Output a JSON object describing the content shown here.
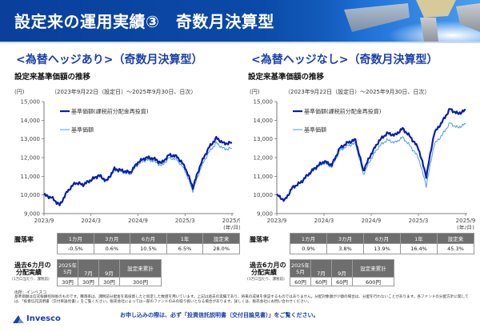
{
  "header": {
    "title": "設定来の運用実績③　奇数月決算型"
  },
  "panels": [
    {
      "title": "<為替ヘッジあり>（奇数月決算型）",
      "section_title": "設定来基準価額の推移",
      "unit": "(円)",
      "period": "（2023年9月22日（設定日）～2025年9月30日、日次）",
      "x_unit": "(年/月)",
      "legend": {
        "reinvested": "基準価額(課税前分配金再投資)",
        "nav": "基準価額"
      },
      "returns": {
        "label": "騰落率",
        "headers": [
          "1カ月",
          "3カ月",
          "6カ月",
          "1年",
          "設定来"
        ],
        "values": [
          "-0.5%",
          "0.6%",
          "10.5%",
          "6.5%",
          "28.0%"
        ]
      },
      "distributions": {
        "label_line1": "過去6カ月の",
        "label_line2": "分配実績",
        "sublabel": "(1万口当たり、課税前)",
        "headers": [
          "2025年\n5月",
          "7月",
          "9月",
          "設定来累計"
        ],
        "header_year": "2025年",
        "header_may": "5月",
        "values": [
          "30円",
          "30円",
          "30円",
          "300円"
        ]
      }
    },
    {
      "title": "<為替ヘッジなし>（奇数月決算型）",
      "section_title": "設定来基準価額の推移",
      "unit": "(円)",
      "period": "（2023年9月22日（設定日）～2025年9月30日、日次）",
      "x_unit": "(年/月)",
      "legend": {
        "reinvested": "基準価額(課税前分配金再投資)",
        "nav": "基準価額"
      },
      "returns": {
        "label": "騰落率",
        "headers": [
          "1カ月",
          "3カ月",
          "6カ月",
          "1年",
          "設定来"
        ],
        "values": [
          "0.9%",
          "3.8%",
          "13.9%",
          "16.4%",
          "45.3%"
        ]
      },
      "distributions": {
        "label_line1": "過去6カ月の",
        "label_line2": "分配実績",
        "sublabel": "(1万口当たり、課税前)",
        "header_year": "2025年",
        "header_may": "5月",
        "headers": [
          "2025年\n5月",
          "7月",
          "9月",
          "設定来累計"
        ],
        "values": [
          "60円",
          "60円",
          "60円",
          "600円"
        ]
      }
    }
  ],
  "footer": {
    "source": "出所：インベスコ",
    "disclaimer": "基準価額は信託報酬控除後のものです。騰落率は、課税前分配金を再投資したと仮定した数値を用いています。上記は過去の実績であり、将来の成果を保証するものではありません。分配対象額が少額の場合は、分配を行わないことがあります。各ファンドの分配方針に関しては、「投資信託説明書（交付目論見書）」をご覧ください。販売会社によっては一部のファンドのみの取り扱いとなる場合があります。詳しくは、販売会社にお問い合わせください。",
    "logo_text": "Invesco",
    "notice": "お申し込みの際は、必ず「投資信託説明書（交付目論見書）」をご覧ください。"
  },
  "colors": {
    "header_blue": "#0b4aa8",
    "title_blue": "#1a3fae",
    "series_reinvested": "#0a1fb0",
    "series_nav": "#4d9ae8",
    "table_header_gray": "#6e6e6e"
  },
  "chart_data": [
    {
      "type": "line",
      "title": "<為替ヘッジあり>（奇数月決算型） 設定来基準価額の推移",
      "subtitle": "（2023年9月22日（設定日）～2025年9月30日、日次）",
      "xlabel": "(年/月)",
      "ylabel": "(円)",
      "ylim": [
        9000,
        15000
      ],
      "yticks": [
        9000,
        10000,
        11000,
        12000,
        13000,
        14000,
        15000
      ],
      "xticks": [
        "2023/9",
        "2024/3",
        "2024/9",
        "2025/3",
        "2025/9"
      ],
      "grid": false,
      "legend_position": "upper-left",
      "x": [
        "2023/9",
        "2023/10",
        "2023/11",
        "2023/12",
        "2024/1",
        "2024/2",
        "2024/3",
        "2024/4",
        "2024/5",
        "2024/6",
        "2024/7",
        "2024/8",
        "2024/9",
        "2024/10",
        "2024/11",
        "2024/12",
        "2025/1",
        "2025/2",
        "2025/3",
        "2025/4",
        "2025/5",
        "2025/6",
        "2025/7",
        "2025/8",
        "2025/9"
      ],
      "series": [
        {
          "name": "基準価額(課税前分配金再投資)",
          "values": [
            10000,
            9850,
            9450,
            10200,
            10650,
            10550,
            10800,
            11050,
            10750,
            11400,
            11300,
            11200,
            11750,
            12000,
            11950,
            11700,
            12150,
            12050,
            11500,
            10400,
            11650,
            12500,
            13050,
            12750,
            12800
          ]
        },
        {
          "name": "基準価額",
          "values": [
            10000,
            9850,
            9450,
            10190,
            10630,
            10520,
            10760,
            11000,
            10700,
            11330,
            11220,
            11110,
            11650,
            11880,
            11820,
            11560,
            11990,
            11880,
            11320,
            10220,
            11430,
            12260,
            12780,
            12460,
            12500
          ]
        }
      ]
    },
    {
      "type": "line",
      "title": "<為替ヘッジなし>（奇数月決算型） 設定来基準価額の推移",
      "subtitle": "（2023年9月22日（設定日）～2025年9月30日、日次）",
      "xlabel": "(年/月)",
      "ylabel": "(円)",
      "ylim": [
        9000,
        15000
      ],
      "yticks": [
        9000,
        10000,
        11000,
        12000,
        13000,
        14000,
        15000
      ],
      "xticks": [
        "2023/9",
        "2024/3",
        "2024/9",
        "2025/3",
        "2025/9"
      ],
      "grid": false,
      "legend_position": "upper-left",
      "x": [
        "2023/9",
        "2023/10",
        "2023/11",
        "2023/12",
        "2024/1",
        "2024/2",
        "2024/3",
        "2024/4",
        "2024/5",
        "2024/6",
        "2024/7",
        "2024/8",
        "2024/9",
        "2024/10",
        "2024/11",
        "2024/12",
        "2025/1",
        "2025/2",
        "2025/3",
        "2025/4",
        "2025/5",
        "2025/6",
        "2025/7",
        "2025/8",
        "2025/9"
      ],
      "series": [
        {
          "name": "基準価額(課税前分配金再投資)",
          "values": [
            10000,
            9700,
            10400,
            10650,
            11100,
            11500,
            11800,
            11600,
            12500,
            12800,
            12950,
            11300,
            12200,
            12900,
            13300,
            13200,
            13550,
            13100,
            12500,
            11000,
            13300,
            13900,
            14600,
            14350,
            14530
          ]
        },
        {
          "name": "基準価額",
          "values": [
            10000,
            9700,
            10390,
            10620,
            11050,
            11430,
            11710,
            11500,
            12370,
            12640,
            12760,
            11100,
            11960,
            12600,
            12950,
            12800,
            13080,
            12600,
            12000,
            10500,
            12700,
            13200,
            13850,
            13600,
            13800
          ]
        }
      ]
    }
  ]
}
